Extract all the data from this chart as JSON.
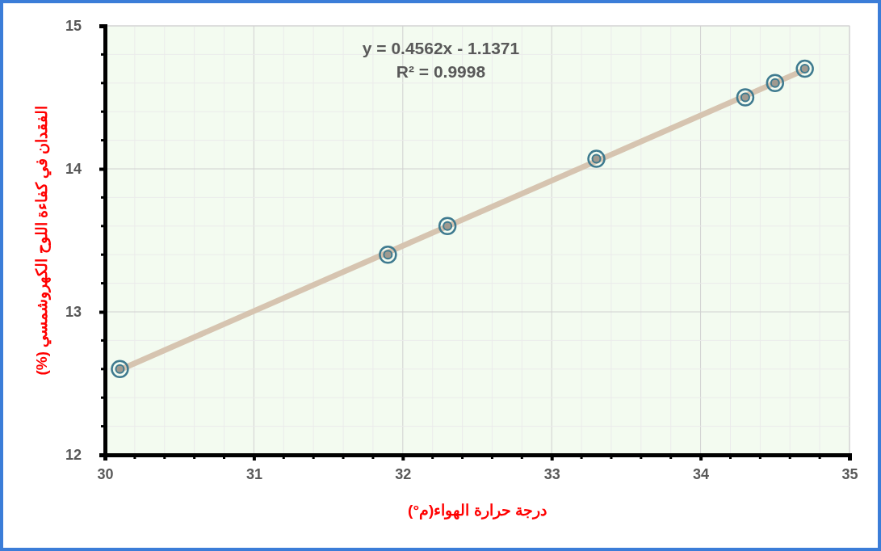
{
  "chart_data": {
    "type": "scatter",
    "xlabel": "درجة حرارة الهواء(م°)",
    "ylabel": "الفقدان في كفاءة اللوح الكهروشمسي (%)",
    "annotations": [
      "y = 0.4562x - 1.1371",
      "R² = 0.9998"
    ],
    "xlim": [
      30,
      35
    ],
    "xticks": [
      30,
      31,
      32,
      33,
      34,
      35
    ],
    "ylim": [
      12,
      15
    ],
    "yticks": [
      12,
      13,
      14,
      15
    ],
    "grid": true,
    "marker": "circle",
    "series": [
      {
        "type": "line",
        "color": "#d6c4b0",
        "x": [
          30.1,
          34.7
        ],
        "values": [
          12.595,
          14.693
        ]
      },
      {
        "color": "#3e7a8f",
        "x": [
          30.1,
          31.9,
          32.3,
          33.3,
          34.3,
          34.5,
          34.7
        ],
        "values": [
          12.6,
          13.4,
          13.6,
          14.07,
          14.5,
          14.6,
          14.7
        ]
      }
    ]
  }
}
